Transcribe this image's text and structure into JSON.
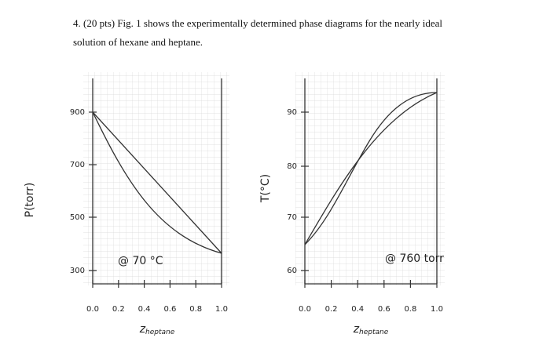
{
  "problem": {
    "line_1": "4. (20 pts) Fig. 1 shows the experimentally determined phase diagrams for the nearly ideal",
    "line_2": "solution of hexane and heptane."
  },
  "figures": [
    {
      "y_label": "P(torr)",
      "y_ticks": [
        "900",
        "700",
        "500",
        "300"
      ],
      "x_ticks": [
        "0.0",
        "0.2",
        "0.4",
        "0.6",
        "0.8",
        "1.0"
      ],
      "x_label": "z",
      "x_label_sub": "heptane",
      "annotation": "@ 70 °C"
    },
    {
      "y_label": "T(°C)",
      "y_ticks": [
        "90",
        "80",
        "70",
        "60"
      ],
      "x_ticks": [
        "0.0",
        "0.2",
        "0.4",
        "0.6",
        "0.8",
        "1.0"
      ],
      "x_label": "z",
      "x_label_sub": "heptane",
      "annotation": "@ 760 torr"
    }
  ]
}
